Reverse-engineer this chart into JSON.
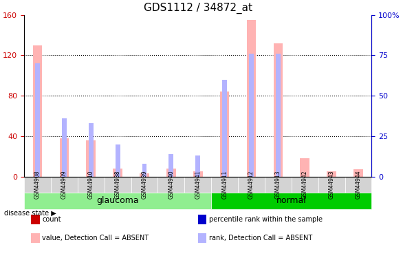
{
  "title": "GDS1112 / 34872_at",
  "samples": [
    "GSM44908",
    "GSM44909",
    "GSM44910",
    "GSM44938",
    "GSM44939",
    "GSM44940",
    "GSM44941",
    "GSM44911",
    "GSM44912",
    "GSM44913",
    "GSM44942",
    "GSM44943",
    "GSM44944"
  ],
  "groups": {
    "glaucoma": [
      "GSM44908",
      "GSM44909",
      "GSM44910",
      "GSM44938",
      "GSM44939",
      "GSM44940",
      "GSM44941"
    ],
    "normal": [
      "GSM44911",
      "GSM44912",
      "GSM44913",
      "GSM44942",
      "GSM44943",
      "GSM44944"
    ]
  },
  "value_bars": [
    130,
    38,
    36,
    8,
    3,
    8,
    5,
    84,
    155,
    132,
    18,
    5,
    7
  ],
  "rank_bars": [
    70,
    36,
    33,
    20,
    8,
    14,
    13,
    60,
    76,
    76,
    0,
    0,
    0
  ],
  "rank_dots": [
    null,
    null,
    null,
    null,
    null,
    null,
    null,
    null,
    null,
    null,
    null,
    null,
    null
  ],
  "ylim_left": [
    0,
    160
  ],
  "ylim_right": [
    0,
    100
  ],
  "yticks_left": [
    0,
    40,
    80,
    120,
    160
  ],
  "yticks_right": [
    0,
    25,
    50,
    75,
    100
  ],
  "color_value_bar": "#FFB3B3",
  "color_rank_bar": "#B3B3FF",
  "color_value_dot": "#CC0000",
  "color_rank_dot": "#0000CC",
  "color_glaucoma_bg": "#90EE90",
  "color_normal_bg": "#00CC00",
  "color_sample_bg": "#D3D3D3",
  "grid_color": "#000000",
  "title_color": "#000000",
  "left_axis_color": "#CC0000",
  "right_axis_color": "#0000CC",
  "legend_items": [
    {
      "label": "count",
      "color": "#CC0000",
      "marker": "s"
    },
    {
      "label": "percentile rank within the sample",
      "color": "#0000CC",
      "marker": "s"
    },
    {
      "label": "value, Detection Call = ABSENT",
      "color": "#FFB3B3",
      "marker": "s"
    },
    {
      "label": "rank, Detection Call = ABSENT",
      "color": "#B3B3FF",
      "marker": "s"
    }
  ]
}
